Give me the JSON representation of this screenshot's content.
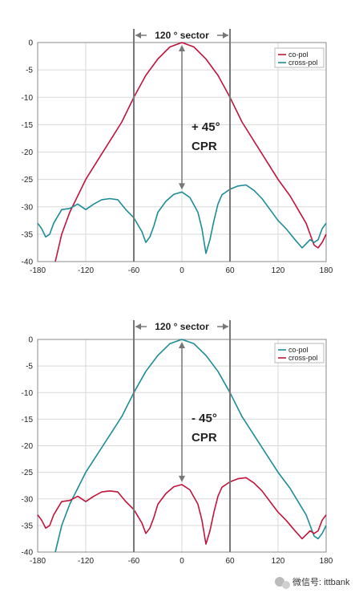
{
  "chart_data": [
    {
      "type": "line",
      "xlim": [
        -180,
        180
      ],
      "ylim": [
        -40,
        0
      ],
      "xticks": [
        -180,
        -120,
        -60,
        0,
        60,
        120,
        180
      ],
      "yticks": [
        0,
        -5,
        -10,
        -15,
        -20,
        -25,
        -30,
        -35,
        -40
      ],
      "grid": true,
      "legend_position": "top-right",
      "annotations": {
        "sector": "120 ° sector",
        "line1": "+ 45°",
        "line2": "CPR"
      },
      "sector_bounds": [
        -60,
        60
      ],
      "series": [
        {
          "name": "co-pol",
          "color": "#c0143c",
          "x": [
            -158,
            -150,
            -140,
            -130,
            -120,
            -105,
            -90,
            -75,
            -60,
            -45,
            -30,
            -15,
            0,
            15,
            30,
            45,
            60,
            75,
            90,
            105,
            120,
            135,
            145,
            155,
            160,
            165,
            170,
            175,
            180
          ],
          "y": [
            -40,
            -35,
            -31,
            -28,
            -25,
            -21.5,
            -18,
            -14.5,
            -10,
            -6,
            -3,
            -0.8,
            0,
            -0.8,
            -3,
            -6,
            -10,
            -14.5,
            -18,
            -21.5,
            -25,
            -28,
            -30.5,
            -33,
            -35,
            -37,
            -37.5,
            -36.5,
            -35
          ]
        },
        {
          "name": "cross-pol",
          "color": "#1e8c96",
          "x": [
            -180,
            -175,
            -170,
            -165,
            -160,
            -150,
            -140,
            -130,
            -120,
            -110,
            -100,
            -90,
            -80,
            -70,
            -60,
            -50,
            -45,
            -40,
            -35,
            -30,
            -20,
            -10,
            0,
            10,
            20,
            25,
            30,
            35,
            40,
            45,
            50,
            60,
            70,
            80,
            90,
            100,
            110,
            120,
            130,
            140,
            150,
            160,
            165,
            170,
            175,
            180
          ],
          "y": [
            -33,
            -34,
            -35.5,
            -35,
            -33,
            -30.5,
            -30.3,
            -29.5,
            -30.5,
            -29.5,
            -28.7,
            -28.5,
            -28.7,
            -30.5,
            -32,
            -34.5,
            -36.5,
            -35.5,
            -33.5,
            -31,
            -29,
            -27.7,
            -27.3,
            -28.3,
            -31,
            -34,
            -38.5,
            -36,
            -32.5,
            -29.5,
            -27.8,
            -26.8,
            -26.2,
            -26,
            -27,
            -28.5,
            -30.5,
            -32.5,
            -34,
            -35.8,
            -37.5,
            -36,
            -36.5,
            -36,
            -34,
            -33
          ]
        }
      ]
    },
    {
      "type": "line",
      "xlim": [
        -180,
        180
      ],
      "ylim": [
        -40,
        0
      ],
      "xticks": [
        -180,
        -120,
        -60,
        0,
        60,
        120,
        180
      ],
      "yticks": [
        0,
        -5,
        -10,
        -15,
        -20,
        -25,
        -30,
        -35,
        -40
      ],
      "grid": true,
      "legend_position": "top-right",
      "annotations": {
        "sector": "120 ° sector",
        "line1": "- 45°",
        "line2": "CPR"
      },
      "sector_bounds": [
        -60,
        60
      ],
      "series": [
        {
          "name": "co-pol",
          "color": "#1e8c96",
          "x": [
            -158,
            -150,
            -140,
            -130,
            -120,
            -105,
            -90,
            -75,
            -60,
            -45,
            -30,
            -15,
            0,
            15,
            30,
            45,
            60,
            75,
            90,
            105,
            120,
            135,
            145,
            155,
            160,
            165,
            170,
            175,
            180
          ],
          "y": [
            -40,
            -35,
            -31,
            -28,
            -25,
            -21.5,
            -18,
            -14.5,
            -10,
            -6,
            -3,
            -0.8,
            0,
            -0.8,
            -3,
            -6,
            -10,
            -14.5,
            -18,
            -21.5,
            -25,
            -28,
            -30.5,
            -33,
            -35,
            -37,
            -37.5,
            -36.5,
            -35
          ]
        },
        {
          "name": "cross-pol",
          "color": "#c0143c",
          "x": [
            -180,
            -175,
            -170,
            -165,
            -160,
            -150,
            -140,
            -130,
            -120,
            -110,
            -100,
            -90,
            -80,
            -70,
            -60,
            -50,
            -45,
            -40,
            -35,
            -30,
            -20,
            -10,
            0,
            10,
            20,
            25,
            30,
            35,
            40,
            45,
            50,
            60,
            70,
            80,
            90,
            100,
            110,
            120,
            130,
            140,
            150,
            160,
            165,
            170,
            175,
            180
          ],
          "y": [
            -33,
            -34,
            -35.5,
            -35,
            -33,
            -30.5,
            -30.3,
            -29.5,
            -30.5,
            -29.5,
            -28.7,
            -28.5,
            -28.7,
            -30.5,
            -32,
            -34.5,
            -36.5,
            -35.5,
            -33.5,
            -31,
            -29,
            -27.7,
            -27.3,
            -28.3,
            -31,
            -34,
            -38.5,
            -36,
            -32.5,
            -29.5,
            -27.8,
            -26.8,
            -26.2,
            -26,
            -27,
            -28.5,
            -30.5,
            -32.5,
            -34,
            -35.8,
            -37.5,
            -36,
            -36.5,
            -36,
            -34,
            -33
          ]
        }
      ]
    }
  ],
  "watermark": {
    "text": "微信号: ittbank",
    "icon": "wechat-icon"
  }
}
